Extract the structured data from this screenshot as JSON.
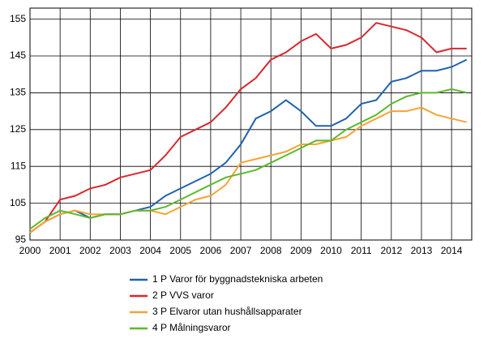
{
  "chart_data": {
    "type": "line",
    "x": [
      2000,
      2000.5,
      2001,
      2001.5,
      2002,
      2002.5,
      2003,
      2003.5,
      2004,
      2004.5,
      2005,
      2005.5,
      2006,
      2006.5,
      2007,
      2007.5,
      2008,
      2008.5,
      2009,
      2009.5,
      2010,
      2010.5,
      2011,
      2011.5,
      2012,
      2012.5,
      2013,
      2013.5,
      2014,
      2014.5
    ],
    "xlim": [
      2000,
      2014.67
    ],
    "xticks": [
      2000,
      2001,
      2002,
      2003,
      2004,
      2005,
      2006,
      2007,
      2008,
      2009,
      2010,
      2011,
      2012,
      2013,
      2014
    ],
    "ylim": [
      95,
      158
    ],
    "yticks": [
      95,
      105,
      115,
      125,
      135,
      145,
      155
    ],
    "grid": true,
    "legend": "bottom",
    "series": [
      {
        "name": "1 P Varor för byggnadstekniska arbeten",
        "color": "#1f62ad",
        "values": [
          97,
          100,
          102,
          103,
          101,
          102,
          102,
          103,
          104,
          107,
          109,
          111,
          113,
          116,
          121,
          128,
          130,
          133,
          130,
          126,
          126,
          128,
          132,
          133,
          138,
          139,
          141,
          141,
          142,
          144
        ]
      },
      {
        "name": "2 P VVS varor",
        "color": "#d7282f",
        "values": [
          97,
          100,
          106,
          107,
          109,
          110,
          112,
          113,
          114,
          118,
          123,
          125,
          127,
          131,
          136,
          139,
          144,
          146,
          149,
          151,
          147,
          148,
          150,
          154,
          153,
          152,
          150,
          146,
          147,
          147
        ]
      },
      {
        "name": "3 P Elvaror utan hushållsapparater",
        "color": "#f5a435",
        "values": [
          97,
          100,
          102,
          103,
          102,
          102,
          102,
          103,
          103,
          102,
          104,
          106,
          107,
          110,
          116,
          117,
          118,
          119,
          121,
          121,
          122,
          123,
          126,
          128,
          130,
          130,
          131,
          129,
          128,
          127
        ]
      },
      {
        "name": "4 P Målningsvaror",
        "color": "#5cb82e",
        "values": [
          98,
          101,
          103,
          102,
          101,
          102,
          102,
          103,
          103,
          104,
          106,
          108,
          110,
          112,
          113,
          114,
          116,
          118,
          120,
          122,
          122,
          125,
          127,
          129,
          132,
          134,
          135,
          135,
          136,
          135
        ]
      }
    ]
  }
}
